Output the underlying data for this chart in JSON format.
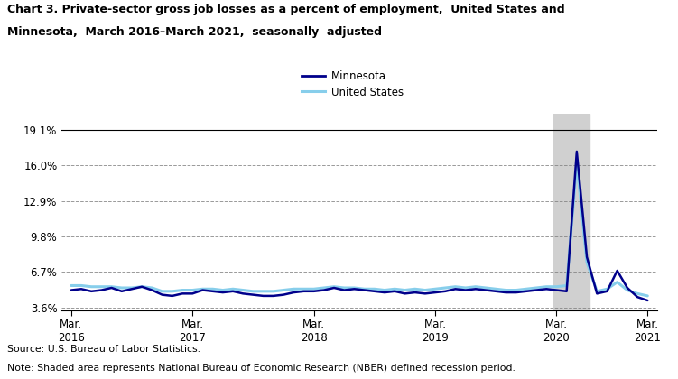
{
  "title_line1": "Chart 3. Private-sector gross job losses as a percent of employment,  United States and",
  "title_line2": "Minnesota,  March 2016–March 2021,  seasonally  adjusted",
  "yticks": [
    3.6,
    6.7,
    9.8,
    12.9,
    16.0,
    19.1
  ],
  "ytick_labels": [
    "3.6%",
    "6.7%",
    "9.8%",
    "12.9%",
    "16.0%",
    "19.1%"
  ],
  "ylim": [
    3.3,
    20.5
  ],
  "source": "Source: U.S. Bureau of Labor Statistics.",
  "note": "Note: Shaded area represents National Bureau of Economic Research (NBER) defined recession period.",
  "recession_start": 48,
  "recession_end": 51,
  "mn_color": "#00008B",
  "us_color": "#87CEEB",
  "mn_linewidth": 1.8,
  "us_linewidth": 2.2,
  "mn_label": "Minnesota",
  "us_label": "United States",
  "mn_data": [
    5.1,
    5.2,
    5.0,
    5.1,
    5.3,
    5.0,
    5.2,
    5.4,
    5.1,
    4.7,
    4.6,
    4.8,
    4.8,
    5.1,
    5.0,
    4.9,
    5.0,
    4.8,
    4.7,
    4.6,
    4.6,
    4.7,
    4.9,
    5.0,
    5.0,
    5.1,
    5.3,
    5.1,
    5.2,
    5.1,
    5.0,
    4.9,
    5.0,
    4.8,
    4.9,
    4.8,
    4.9,
    5.0,
    5.2,
    5.1,
    5.2,
    5.1,
    5.0,
    4.9,
    4.9,
    5.0,
    5.1,
    5.2,
    5.1,
    5.0,
    17.2,
    8.0,
    4.8,
    5.0,
    6.8,
    5.3,
    4.5,
    4.2
  ],
  "us_data": [
    5.5,
    5.5,
    5.4,
    5.4,
    5.4,
    5.3,
    5.3,
    5.4,
    5.3,
    5.0,
    5.0,
    5.1,
    5.1,
    5.2,
    5.2,
    5.1,
    5.2,
    5.1,
    5.0,
    5.0,
    5.0,
    5.1,
    5.2,
    5.2,
    5.2,
    5.3,
    5.4,
    5.3,
    5.3,
    5.2,
    5.2,
    5.1,
    5.2,
    5.1,
    5.2,
    5.1,
    5.2,
    5.3,
    5.4,
    5.3,
    5.4,
    5.3,
    5.2,
    5.1,
    5.1,
    5.2,
    5.3,
    5.4,
    5.4,
    5.5,
    16.2,
    7.5,
    5.0,
    5.2,
    5.8,
    5.1,
    4.8,
    4.6
  ],
  "n_points": 58,
  "xtick_positions": [
    0,
    12,
    24,
    36,
    48,
    57
  ],
  "xtick_labels": [
    "Mar.\n2016",
    "Mar.\n2017",
    "Mar.\n2018",
    "Mar.\n2019",
    "Mar.\n2020",
    "Mar.\n2021"
  ],
  "background_color": "#ffffff",
  "shade_color": "#d0d0d0"
}
